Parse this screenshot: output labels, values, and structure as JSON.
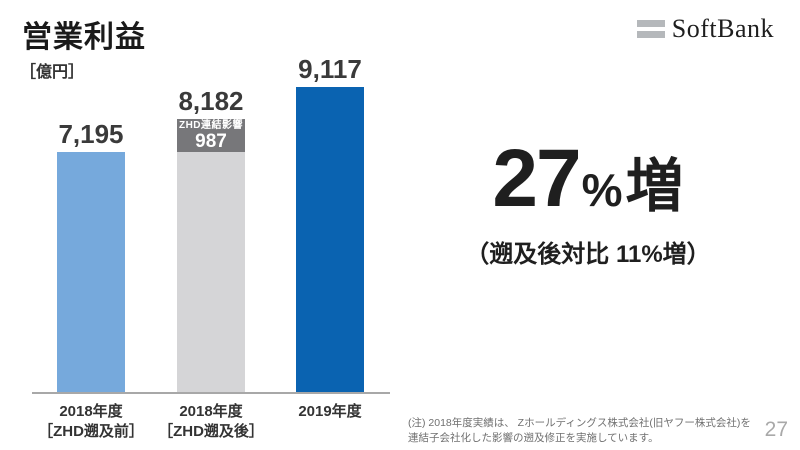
{
  "header": {
    "title": "営業利益",
    "unit_label": "［億円］"
  },
  "logo": {
    "text": "SoftBank",
    "bar_color": "#b5b8bb"
  },
  "chart_data": {
    "type": "bar",
    "title": "営業利益",
    "unit": "億円",
    "ylim": [
      0,
      9600
    ],
    "grid": false,
    "axis": "baseline-only",
    "categories": [
      "2018年度［ZHD遡及前］",
      "2018年度［ZHD遡及後］",
      "2019年度"
    ],
    "values": [
      7195,
      8182,
      9117
    ],
    "bars": [
      {
        "category_line1": "2018年度",
        "category_line2": "［ZHD遡及前］",
        "value": 7195,
        "value_label": "7,195",
        "color": "#76a9dc"
      },
      {
        "category_line1": "2018年度",
        "category_line2": "［ZHD遡及後］",
        "value": 8182,
        "value_label": "8,182",
        "color": "#d5d5d7",
        "segment": {
          "label": "ZHD連結影響",
          "value": 987,
          "value_label": "987",
          "color": "#77777a"
        }
      },
      {
        "category_line1": "2019年度",
        "category_line2": "",
        "value": 9117,
        "value_label": "9,117",
        "color": "#0a63b1"
      }
    ]
  },
  "callout": {
    "headline_value": "27",
    "headline_percent": "%",
    "headline_suffix": "増",
    "subline": "（遡及後対比 11%増）"
  },
  "footer": {
    "note": "(注) 2018年度実績は、 Zホールディングス株式会社(旧ヤフー株式会社)を連結子会社化した影響の遡及修正を実施しています。",
    "page_number": "27"
  }
}
